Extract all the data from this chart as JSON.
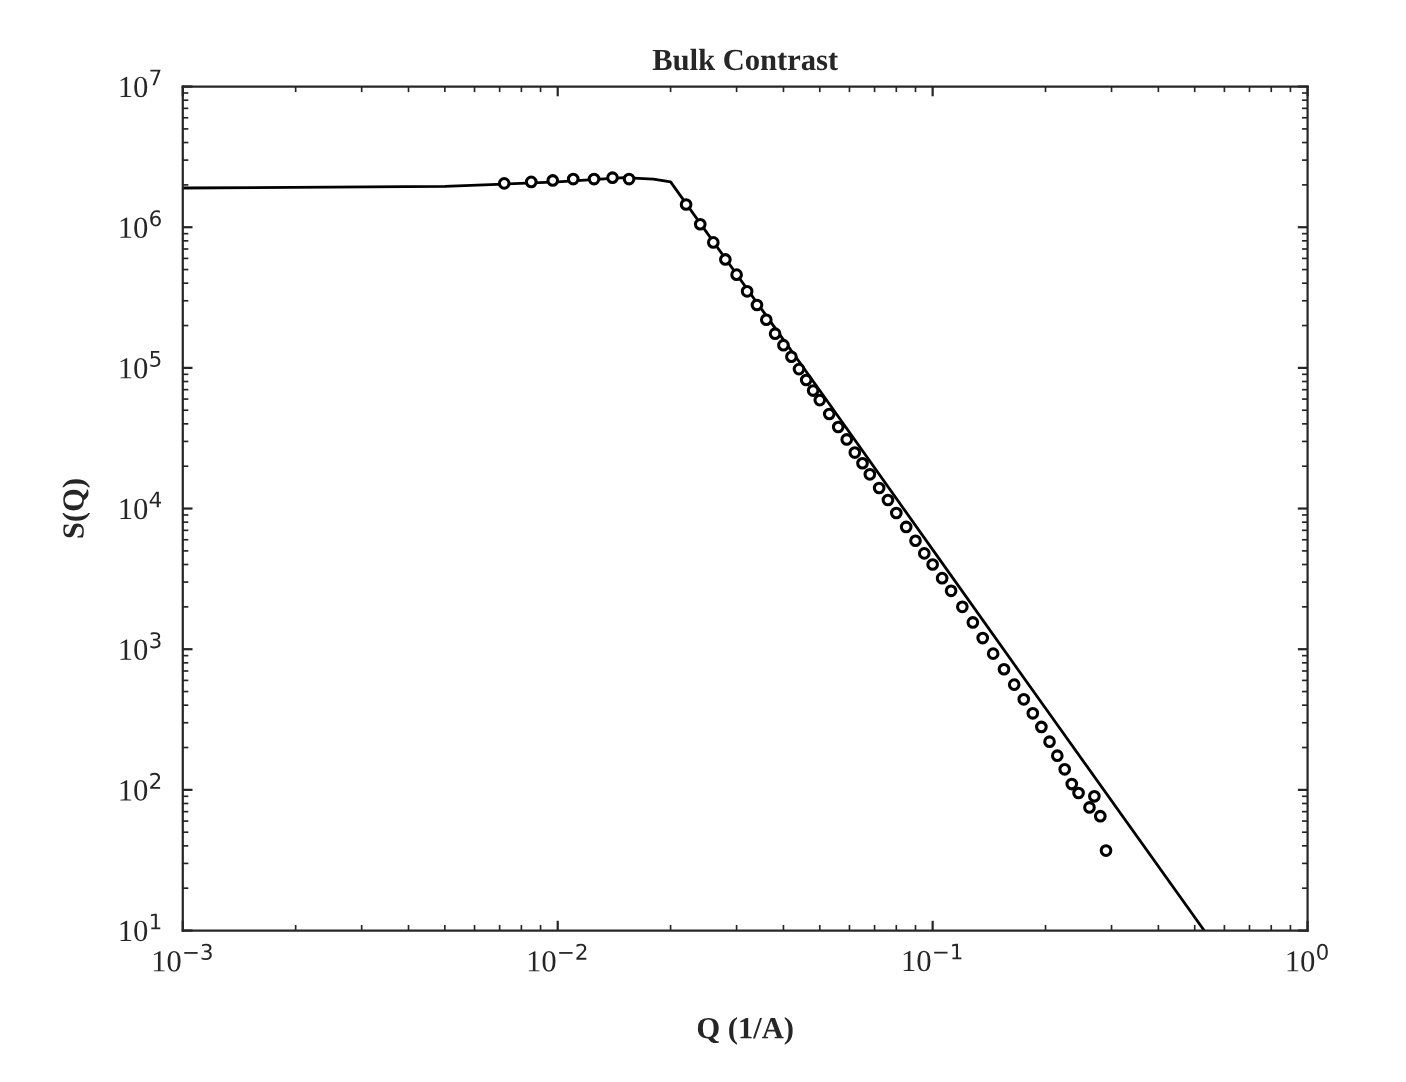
{
  "chart_data": {
    "type": "scatter",
    "title": "Bulk Contrast",
    "xlabel": "Q (1/A)",
    "ylabel": "S(Q)",
    "log": "xy",
    "grid": false,
    "legend": false,
    "marker": "circle",
    "xlim": [
      0.001,
      1
    ],
    "ylim": [
      10,
      10000000
    ],
    "xticks": [
      {
        "value": 0.001,
        "label": "10$^{−3}$"
      },
      {
        "value": 0.01,
        "label": "10$^{−2}$"
      },
      {
        "value": 0.1,
        "label": "10$^{−1}$"
      },
      {
        "value": 1,
        "label": "10$^{0}$"
      }
    ],
    "yticks": [
      {
        "value": 10,
        "label": "10$^{1}$"
      },
      {
        "value": 100,
        "label": "10$^{2}$"
      },
      {
        "value": 1000,
        "label": "10$^{3}$"
      },
      {
        "value": 10000,
        "label": "10$^{4}$"
      },
      {
        "value": 100000,
        "label": "10$^{5}$"
      },
      {
        "value": 1000000,
        "label": "10$^{6}$"
      },
      {
        "value": 10000000,
        "label": "10$^{7}$"
      }
    ],
    "series": [
      {
        "type": "line",
        "marker": "none",
        "color": "#000000",
        "x": [
          0.001,
          0.005,
          0.01,
          0.015,
          0.018,
          0.02,
          0.05,
          0.1,
          0.2,
          0.53
        ],
        "values": [
          1900000,
          1950000,
          2100000,
          2250000,
          2200000,
          2100000,
          69000,
          5100,
          380,
          10
        ]
      },
      {
        "color": "#000000",
        "x": [
          0.0072,
          0.0085,
          0.0097,
          0.011,
          0.0125,
          0.014,
          0.0155,
          0.022,
          0.024,
          0.026,
          0.028,
          0.03,
          0.032,
          0.034,
          0.036,
          0.038,
          0.04,
          0.042,
          0.044,
          0.046,
          0.048,
          0.05,
          0.053,
          0.056,
          0.059,
          0.062,
          0.065,
          0.068,
          0.072,
          0.076,
          0.08,
          0.085,
          0.09,
          0.095,
          0.1,
          0.106,
          0.112,
          0.12,
          0.128,
          0.136,
          0.145,
          0.155,
          0.165,
          0.175,
          0.185,
          0.195,
          0.205,
          0.215,
          0.225,
          0.235,
          0.245,
          0.255,
          0.262,
          0.27,
          0.28,
          0.29
        ],
        "values": [
          2050000,
          2100000,
          2150000,
          2200000,
          2200000,
          2250000,
          2200000,
          1450000,
          1050000,
          780000,
          590000,
          460000,
          350000,
          280000,
          220000,
          175000,
          145000,
          120000,
          98000,
          82000,
          69000,
          59000,
          47000,
          38000,
          31000,
          25000,
          21000,
          17500,
          14000,
          11500,
          9300,
          7400,
          5900,
          4800,
          4000,
          3200,
          2600,
          2000,
          1550,
          1200,
          930,
          720,
          560,
          440,
          350,
          280,
          220,
          175,
          140,
          110,
          95,
          null,
          75,
          90,
          65,
          37
        ]
      }
    ]
  }
}
